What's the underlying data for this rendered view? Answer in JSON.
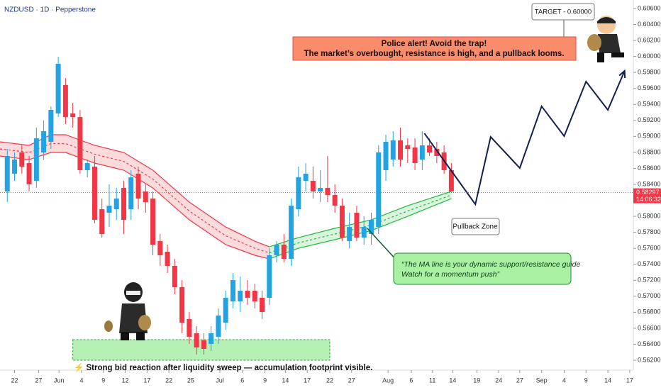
{
  "chart_data": {
    "type": "candlestick",
    "title": "NZDUSD · 1D · Pepperstone",
    "up_color": "#22a3e3",
    "down_color": "#f23645",
    "xlim": [
      -1,
      86
    ],
    "ylim": [
      0.56076,
      0.60706
    ],
    "candles": [
      [
        0.58311,
        0.58843,
        0.58178,
        0.58755
      ],
      [
        0.58533,
        0.58799,
        0.58444,
        0.5871
      ],
      [
        0.58799,
        0.58888,
        0.58533,
        0.58622
      ],
      [
        0.58666,
        0.58755,
        0.58311,
        0.584
      ],
      [
        0.58444,
        0.59109,
        0.58355,
        0.58976
      ],
      [
        0.58799,
        0.59198,
        0.5871,
        0.59065
      ],
      [
        0.58932,
        0.59376,
        0.58843,
        0.59331
      ],
      [
        0.59287,
        0.59996,
        0.59242,
        0.59908
      ],
      [
        0.59642,
        0.5973,
        0.59154,
        0.59242
      ],
      [
        0.59287,
        0.5942,
        0.59109,
        0.59242
      ],
      [
        0.59242,
        0.59331,
        0.58533,
        0.58577
      ],
      [
        0.58577,
        0.5871,
        0.58488,
        0.58666
      ],
      [
        0.58622,
        0.58755,
        0.57912,
        0.57956
      ],
      [
        0.58089,
        0.58222,
        0.57734,
        0.57779
      ],
      [
        0.58045,
        0.584,
        0.57867,
        0.58133
      ],
      [
        0.58089,
        0.58355,
        0.57956,
        0.58222
      ],
      [
        0.58355,
        0.58444,
        0.57779,
        0.57956
      ],
      [
        0.58089,
        0.58577,
        0.57956,
        0.58488
      ],
      [
        0.58533,
        0.58622,
        0.58089,
        0.58222
      ],
      [
        0.58311,
        0.584,
        0.58045,
        0.58178
      ],
      [
        0.58222,
        0.58311,
        0.57513,
        0.57646
      ],
      [
        0.5769,
        0.57779,
        0.5738,
        0.57513
      ],
      [
        0.57557,
        0.57646,
        0.57291,
        0.5738
      ],
      [
        0.5738,
        0.57468,
        0.57025,
        0.57114
      ],
      [
        0.57114,
        0.57202,
        0.56537,
        0.5667
      ],
      [
        0.56715,
        0.56803,
        0.56404,
        0.56493
      ],
      [
        0.56537,
        0.56626,
        0.56271,
        0.5636
      ],
      [
        0.56448,
        0.56537,
        0.56271,
        0.56342
      ],
      [
        0.56404,
        0.56626,
        0.56315,
        0.56537
      ],
      [
        0.56493,
        0.56848,
        0.56404,
        0.56759
      ],
      [
        0.5667,
        0.57069,
        0.56582,
        0.56981
      ],
      [
        0.56936,
        0.57291,
        0.56848,
        0.57202
      ],
      [
        0.56936,
        0.57247,
        0.56803,
        0.57069
      ],
      [
        0.57069,
        0.57202,
        0.56892,
        0.56981
      ],
      [
        0.57069,
        0.57158,
        0.56848,
        0.56936
      ],
      [
        0.56981,
        0.57069,
        0.56715,
        0.56803
      ],
      [
        0.56981,
        0.57601,
        0.56892,
        0.57513
      ],
      [
        0.57513,
        0.5769,
        0.57424,
        0.57646
      ],
      [
        0.57646,
        0.57779,
        0.57424,
        0.57468
      ],
      [
        0.57468,
        0.58222,
        0.5738,
        0.58133
      ],
      [
        0.58089,
        0.58622,
        0.58,
        0.58488
      ],
      [
        0.58444,
        0.58666,
        0.58311,
        0.58533
      ],
      [
        0.58444,
        0.58622,
        0.58222,
        0.58311
      ],
      [
        0.58311,
        0.58577,
        0.58178,
        0.58355
      ],
      [
        0.58355,
        0.58755,
        0.58178,
        0.58267
      ],
      [
        0.58267,
        0.584,
        0.58045,
        0.58133
      ],
      [
        0.58133,
        0.58222,
        0.5769,
        0.57734
      ],
      [
        0.5769,
        0.58045,
        0.57601,
        0.57867
      ],
      [
        0.58045,
        0.58133,
        0.5769,
        0.57734
      ],
      [
        0.57734,
        0.58,
        0.57646,
        0.57867
      ],
      [
        0.57779,
        0.58045,
        0.57646,
        0.57956
      ],
      [
        0.57867,
        0.58888,
        0.57779,
        0.58799
      ],
      [
        0.58577,
        0.59021,
        0.58444,
        0.58932
      ],
      [
        0.5871,
        0.59065,
        0.58622,
        0.5895
      ],
      [
        0.5895,
        0.59109,
        0.58622,
        0.5871
      ],
      [
        0.58888,
        0.58976,
        0.58666,
        0.58843
      ],
      [
        0.58861,
        0.58976,
        0.58577,
        0.58666
      ],
      [
        0.5871,
        0.59065,
        0.58577,
        0.58888
      ],
      [
        0.58888,
        0.58976,
        0.58755,
        0.58799
      ],
      [
        0.58843,
        0.58932,
        0.58666,
        0.58755
      ],
      [
        0.58799,
        0.58888,
        0.58533,
        0.58577
      ],
      [
        0.58577,
        0.58666,
        0.58311,
        0.58311
      ]
    ],
    "bands": [
      {
        "color": "#f23645",
        "fill": "rgba(242,54,69,0.18)",
        "x": [
          -1,
          3,
          6,
          8,
          12,
          16,
          20,
          25,
          30,
          34,
          36
        ],
        "upper": [
          0.58932,
          0.58888,
          0.59021,
          0.59021,
          0.58888,
          0.58799,
          0.58577,
          0.58178,
          0.57867,
          0.5769,
          0.57619
        ],
        "lower": [
          0.58755,
          0.5871,
          0.58799,
          0.58799,
          0.58666,
          0.58577,
          0.58355,
          0.57956,
          0.57646,
          0.57513,
          0.57468
        ]
      },
      {
        "color": "#1fb83a",
        "fill": "rgba(76,200,90,0.2)",
        "x": [
          36,
          40,
          45,
          50,
          55,
          61
        ],
        "upper": [
          0.57619,
          0.57734,
          0.5785,
          0.57956,
          0.58133,
          0.58311
        ],
        "lower": [
          0.57468,
          0.57601,
          0.57708,
          0.57823,
          0.58,
          0.58222
        ]
      }
    ],
    "projection": {
      "color": "#14204a",
      "x": [
        57.3,
        64.3,
        66.4,
        70.4,
        73.4,
        76.5,
        79.5,
        82.5,
        84.8
      ],
      "values": [
        0.59038,
        0.58151,
        0.58994,
        0.58604,
        0.59376,
        0.59003,
        0.59686,
        0.59331,
        0.59819
      ]
    },
    "zone": {
      "x": [
        9,
        44.3
      ],
      "y": [
        0.562,
        0.56457
      ]
    },
    "last_price": 0.58297,
    "timer": "14:06:32",
    "yticks": [
      {
        "value": 0.606,
        "label": "0.60600"
      },
      {
        "value": 0.604,
        "label": "0.60400"
      },
      {
        "value": 0.602,
        "label": "0.60200"
      },
      {
        "value": 0.6,
        "label": "0.60000"
      },
      {
        "value": 0.598,
        "label": "0.59800"
      },
      {
        "value": 0.596,
        "label": "0.59600"
      },
      {
        "value": 0.594,
        "label": "0.59400"
      },
      {
        "value": 0.592,
        "label": "0.59200"
      },
      {
        "value": 0.59,
        "label": "0.59000"
      },
      {
        "value": 0.588,
        "label": "0.58800"
      },
      {
        "value": 0.586,
        "label": "0.58600"
      },
      {
        "value": 0.584,
        "label": "0.58400"
      },
      {
        "value": 0.582,
        "label": "0.58200"
      },
      {
        "value": 0.58,
        "label": "0.58000"
      },
      {
        "value": 0.578,
        "label": "0.57800"
      },
      {
        "value": 0.576,
        "label": "0.57600"
      },
      {
        "value": 0.574,
        "label": "0.57400"
      },
      {
        "value": 0.572,
        "label": "0.57200"
      },
      {
        "value": 0.57,
        "label": "0.57000"
      },
      {
        "value": 0.568,
        "label": "0.56800"
      },
      {
        "value": 0.566,
        "label": "0.56600"
      },
      {
        "value": 0.564,
        "label": "0.56400"
      },
      {
        "value": 0.562,
        "label": "0.56200"
      }
    ],
    "xticks": [
      {
        "value": 1.0,
        "label": "22"
      },
      {
        "value": 4.3,
        "label": "27"
      },
      {
        "value": 7.1,
        "label": "Jun"
      },
      {
        "value": 10.2,
        "label": "4"
      },
      {
        "value": 13.2,
        "label": "9"
      },
      {
        "value": 16.2,
        "label": "12"
      },
      {
        "value": 19.2,
        "label": "17"
      },
      {
        "value": 22.2,
        "label": "22"
      },
      {
        "value": 25.2,
        "label": "25"
      },
      {
        "value": 29.2,
        "label": "Jul"
      },
      {
        "value": 32.3,
        "label": "6"
      },
      {
        "value": 35.4,
        "label": "9"
      },
      {
        "value": 38.2,
        "label": "14"
      },
      {
        "value": 41.2,
        "label": "17"
      },
      {
        "value": 44.3,
        "label": "22"
      },
      {
        "value": 47.3,
        "label": "27"
      },
      {
        "value": 52.3,
        "label": "Aug"
      },
      {
        "value": 55.5,
        "label": "6"
      },
      {
        "value": 58.4,
        "label": "11"
      },
      {
        "value": 61.2,
        "label": "14"
      },
      {
        "value": 64.5,
        "label": "19"
      },
      {
        "value": 67.5,
        "label": "24"
      },
      {
        "value": 70.4,
        "label": "27"
      },
      {
        "value": 73.4,
        "label": "Sep"
      },
      {
        "value": 76.5,
        "label": "4"
      },
      {
        "value": 79.5,
        "label": "9"
      },
      {
        "value": 82.5,
        "label": "14"
      },
      {
        "value": 85.5,
        "label": "17"
      }
    ],
    "annotations": {
      "target": "TARGET - 0.60000",
      "alert_1": "Police alert!  Avoid the trap!",
      "alert_2": "The market’s overbought, resistance is high, and a pullback looms.",
      "pullback": "Pullback Zone",
      "ma_note_1": "“The MA line is your dynamic support/resistance guide",
      "ma_note_2": "Watch for a momentum push”",
      "bottom": "⚡ Strong bid reaction after liquidity sweep — accumulation footprint visible."
    }
  }
}
